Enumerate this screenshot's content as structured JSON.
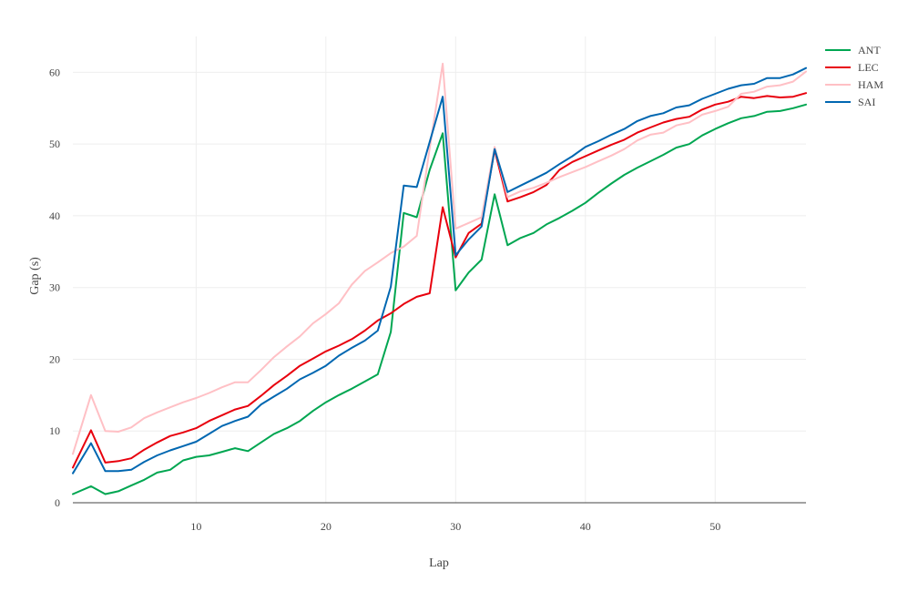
{
  "chart_data": {
    "type": "line",
    "xlabel": "Lap",
    "ylabel": "Gap (s)",
    "xlim": [
      0.5,
      57
    ],
    "ylim": [
      0,
      65
    ],
    "x_ticks": [
      10,
      20,
      30,
      40,
      50
    ],
    "y_ticks": [
      0,
      10,
      20,
      30,
      40,
      50,
      60
    ],
    "grid": true,
    "legend_position": "top-right",
    "series": [
      {
        "name": "ANT",
        "color": "#00a651",
        "points": [
          [
            0.5,
            1.2
          ],
          [
            1.9,
            2.3
          ],
          [
            3,
            1.2
          ],
          [
            4,
            1.6
          ],
          [
            5,
            2.4
          ],
          [
            6,
            3.2
          ],
          [
            7,
            4.2
          ],
          [
            8,
            4.6
          ],
          [
            9,
            5.9
          ],
          [
            10,
            6.4
          ],
          [
            11,
            6.6
          ],
          [
            12,
            7.1
          ],
          [
            13,
            7.6
          ],
          [
            14,
            7.2
          ],
          [
            15,
            8.4
          ],
          [
            16,
            9.6
          ],
          [
            17,
            10.4
          ],
          [
            18,
            11.4
          ],
          [
            19,
            12.8
          ],
          [
            20,
            14.0
          ],
          [
            21,
            15.0
          ],
          [
            22,
            15.9
          ],
          [
            23,
            16.9
          ],
          [
            24,
            17.9
          ],
          [
            25,
            23.8
          ],
          [
            26,
            40.4
          ],
          [
            27,
            39.8
          ],
          [
            28,
            46.4
          ],
          [
            29,
            51.5
          ],
          [
            30,
            29.6
          ],
          [
            31,
            32.1
          ],
          [
            32,
            33.9
          ],
          [
            33,
            43.0
          ],
          [
            34,
            35.9
          ],
          [
            35,
            36.9
          ],
          [
            36,
            37.6
          ],
          [
            37,
            38.8
          ],
          [
            38,
            39.7
          ],
          [
            39,
            40.7
          ],
          [
            40,
            41.8
          ],
          [
            41,
            43.2
          ],
          [
            42,
            44.5
          ],
          [
            43,
            45.7
          ],
          [
            44,
            46.7
          ],
          [
            45,
            47.6
          ],
          [
            46,
            48.5
          ],
          [
            47,
            49.5
          ],
          [
            48,
            50.0
          ],
          [
            49,
            51.2
          ],
          [
            50,
            52.1
          ],
          [
            51,
            52.9
          ],
          [
            52,
            53.6
          ],
          [
            53,
            53.9
          ],
          [
            54,
            54.5
          ],
          [
            55,
            54.6
          ],
          [
            56,
            55.0
          ],
          [
            57,
            55.5
          ]
        ]
      },
      {
        "name": "LEC",
        "color": "#e8000d",
        "points": [
          [
            0.5,
            4.9
          ],
          [
            1.9,
            10.1
          ],
          [
            3,
            5.6
          ],
          [
            4,
            5.8
          ],
          [
            5,
            6.2
          ],
          [
            6,
            7.4
          ],
          [
            7,
            8.4
          ],
          [
            8,
            9.3
          ],
          [
            9,
            9.8
          ],
          [
            10,
            10.4
          ],
          [
            11,
            11.4
          ],
          [
            12,
            12.2
          ],
          [
            13,
            13.0
          ],
          [
            14,
            13.5
          ],
          [
            15,
            14.9
          ],
          [
            16,
            16.4
          ],
          [
            17,
            17.7
          ],
          [
            18,
            19.1
          ],
          [
            19,
            20.1
          ],
          [
            20,
            21.1
          ],
          [
            21,
            21.9
          ],
          [
            22,
            22.8
          ],
          [
            23,
            24.0
          ],
          [
            24,
            25.4
          ],
          [
            25,
            26.4
          ],
          [
            26,
            27.7
          ],
          [
            27,
            28.7
          ],
          [
            28,
            29.2
          ],
          [
            29,
            41.2
          ],
          [
            30,
            34.2
          ],
          [
            31,
            37.6
          ],
          [
            32,
            38.9
          ],
          [
            33,
            49.2
          ],
          [
            34,
            42.0
          ],
          [
            35,
            42.6
          ],
          [
            36,
            43.3
          ],
          [
            37,
            44.3
          ],
          [
            38,
            46.4
          ],
          [
            39,
            47.5
          ],
          [
            40,
            48.3
          ],
          [
            41,
            49.1
          ],
          [
            42,
            49.9
          ],
          [
            43,
            50.6
          ],
          [
            44,
            51.6
          ],
          [
            45,
            52.3
          ],
          [
            46,
            53.0
          ],
          [
            47,
            53.5
          ],
          [
            48,
            53.8
          ],
          [
            49,
            54.8
          ],
          [
            50,
            55.5
          ],
          [
            51,
            55.9
          ],
          [
            52,
            56.6
          ],
          [
            53,
            56.4
          ],
          [
            54,
            56.7
          ],
          [
            55,
            56.5
          ],
          [
            56,
            56.6
          ],
          [
            57,
            57.1
          ]
        ]
      },
      {
        "name": "HAM",
        "color": "#ffc0c5",
        "points": [
          [
            0.5,
            6.8
          ],
          [
            1.9,
            15.0
          ],
          [
            3,
            10.0
          ],
          [
            4,
            9.9
          ],
          [
            5,
            10.5
          ],
          [
            6,
            11.8
          ],
          [
            7,
            12.6
          ],
          [
            8,
            13.3
          ],
          [
            9,
            14.0
          ],
          [
            10,
            14.6
          ],
          [
            11,
            15.3
          ],
          [
            12,
            16.1
          ],
          [
            13,
            16.8
          ],
          [
            14,
            16.8
          ],
          [
            15,
            18.5
          ],
          [
            16,
            20.3
          ],
          [
            17,
            21.8
          ],
          [
            18,
            23.2
          ],
          [
            19,
            25.0
          ],
          [
            20,
            26.3
          ],
          [
            21,
            27.8
          ],
          [
            22,
            30.4
          ],
          [
            23,
            32.3
          ],
          [
            24,
            33.5
          ],
          [
            25,
            34.8
          ],
          [
            26,
            35.7
          ],
          [
            27,
            37.2
          ],
          [
            28,
            49.4
          ],
          [
            29,
            61.2
          ],
          [
            30,
            38.2
          ],
          [
            31,
            39.0
          ],
          [
            32,
            39.8
          ],
          [
            33,
            49.6
          ],
          [
            34,
            42.6
          ],
          [
            35,
            43.4
          ],
          [
            36,
            43.9
          ],
          [
            37,
            44.6
          ],
          [
            38,
            45.4
          ],
          [
            39,
            46.1
          ],
          [
            40,
            46.8
          ],
          [
            41,
            47.6
          ],
          [
            42,
            48.4
          ],
          [
            43,
            49.3
          ],
          [
            44,
            50.5
          ],
          [
            45,
            51.3
          ],
          [
            46,
            51.6
          ],
          [
            47,
            52.6
          ],
          [
            48,
            53.0
          ],
          [
            49,
            54.1
          ],
          [
            50,
            54.6
          ],
          [
            51,
            55.2
          ],
          [
            52,
            57.0
          ],
          [
            53,
            57.3
          ],
          [
            54,
            58.0
          ],
          [
            55,
            58.2
          ],
          [
            56,
            58.7
          ],
          [
            57,
            60.1
          ]
        ]
      },
      {
        "name": "SAI",
        "color": "#0067b1",
        "points": [
          [
            0.5,
            4.1
          ],
          [
            1.9,
            8.3
          ],
          [
            3,
            4.4
          ],
          [
            4,
            4.4
          ],
          [
            5,
            4.6
          ],
          [
            6,
            5.7
          ],
          [
            7,
            6.6
          ],
          [
            8,
            7.3
          ],
          [
            9,
            7.9
          ],
          [
            10,
            8.5
          ],
          [
            11,
            9.6
          ],
          [
            12,
            10.7
          ],
          [
            13,
            11.4
          ],
          [
            14,
            12.0
          ],
          [
            15,
            13.7
          ],
          [
            16,
            14.8
          ],
          [
            17,
            15.9
          ],
          [
            18,
            17.2
          ],
          [
            19,
            18.1
          ],
          [
            20,
            19.1
          ],
          [
            21,
            20.5
          ],
          [
            22,
            21.6
          ],
          [
            23,
            22.6
          ],
          [
            24,
            24.0
          ],
          [
            25,
            30.1
          ],
          [
            26,
            44.2
          ],
          [
            27,
            44.0
          ],
          [
            28,
            50.3
          ],
          [
            29,
            56.6
          ],
          [
            30,
            34.5
          ],
          [
            31,
            36.7
          ],
          [
            32,
            38.5
          ],
          [
            33,
            49.3
          ],
          [
            34,
            43.3
          ],
          [
            35,
            44.2
          ],
          [
            36,
            45.1
          ],
          [
            37,
            46.0
          ],
          [
            38,
            47.2
          ],
          [
            39,
            48.3
          ],
          [
            40,
            49.6
          ],
          [
            41,
            50.4
          ],
          [
            42,
            51.3
          ],
          [
            43,
            52.1
          ],
          [
            44,
            53.2
          ],
          [
            45,
            53.9
          ],
          [
            46,
            54.3
          ],
          [
            47,
            55.1
          ],
          [
            48,
            55.4
          ],
          [
            49,
            56.3
          ],
          [
            50,
            57.0
          ],
          [
            51,
            57.7
          ],
          [
            52,
            58.2
          ],
          [
            53,
            58.4
          ],
          [
            54,
            59.2
          ],
          [
            55,
            59.2
          ],
          [
            56,
            59.7
          ],
          [
            57,
            60.6
          ]
        ]
      }
    ]
  }
}
